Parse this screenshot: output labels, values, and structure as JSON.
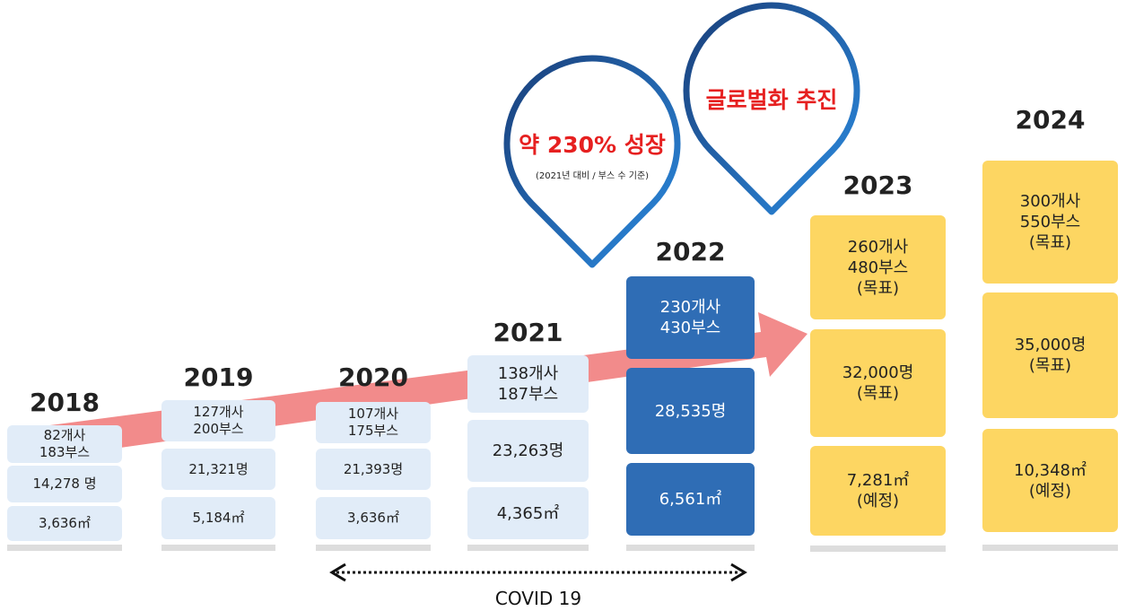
{
  "years": [
    {
      "year": "2018",
      "items": [
        [
          "82개사",
          "183부스"
        ],
        [
          "14,278 명"
        ],
        [
          "3,636㎡"
        ]
      ]
    },
    {
      "year": "2019",
      "items": [
        [
          "127개사",
          "200부스"
        ],
        [
          "21,321명"
        ],
        [
          "5,184㎡"
        ]
      ]
    },
    {
      "year": "2020",
      "items": [
        [
          "107개사",
          "175부스"
        ],
        [
          "21,393명"
        ],
        [
          "3,636㎡"
        ]
      ]
    },
    {
      "year": "2021",
      "items": [
        [
          "138개사",
          "187부스"
        ],
        [
          "23,263명"
        ],
        [
          "4,365㎡"
        ]
      ]
    },
    {
      "year": "2022",
      "items": [
        [
          "230개사",
          "430부스"
        ],
        [
          "28,535명"
        ],
        [
          "6,561㎡"
        ]
      ]
    },
    {
      "year": "2023",
      "items": [
        [
          "260개사",
          "480부스",
          "(목표)"
        ],
        [
          "32,000명",
          "(목표)"
        ],
        [
          "7,281㎡",
          "(예정)"
        ]
      ]
    },
    {
      "year": "2024",
      "items": [
        [
          "300개사",
          "550부스",
          "(목표)"
        ],
        [
          "35,000명",
          "(목표)"
        ],
        [
          "10,348㎡",
          "(예정)"
        ]
      ]
    }
  ],
  "bubbles": [
    {
      "title": "약 230% 성장",
      "note": "(2021년 대비 / 부스 수 기준)"
    },
    {
      "title": "글로벌화 추진"
    }
  ],
  "period": "COVID 19"
}
